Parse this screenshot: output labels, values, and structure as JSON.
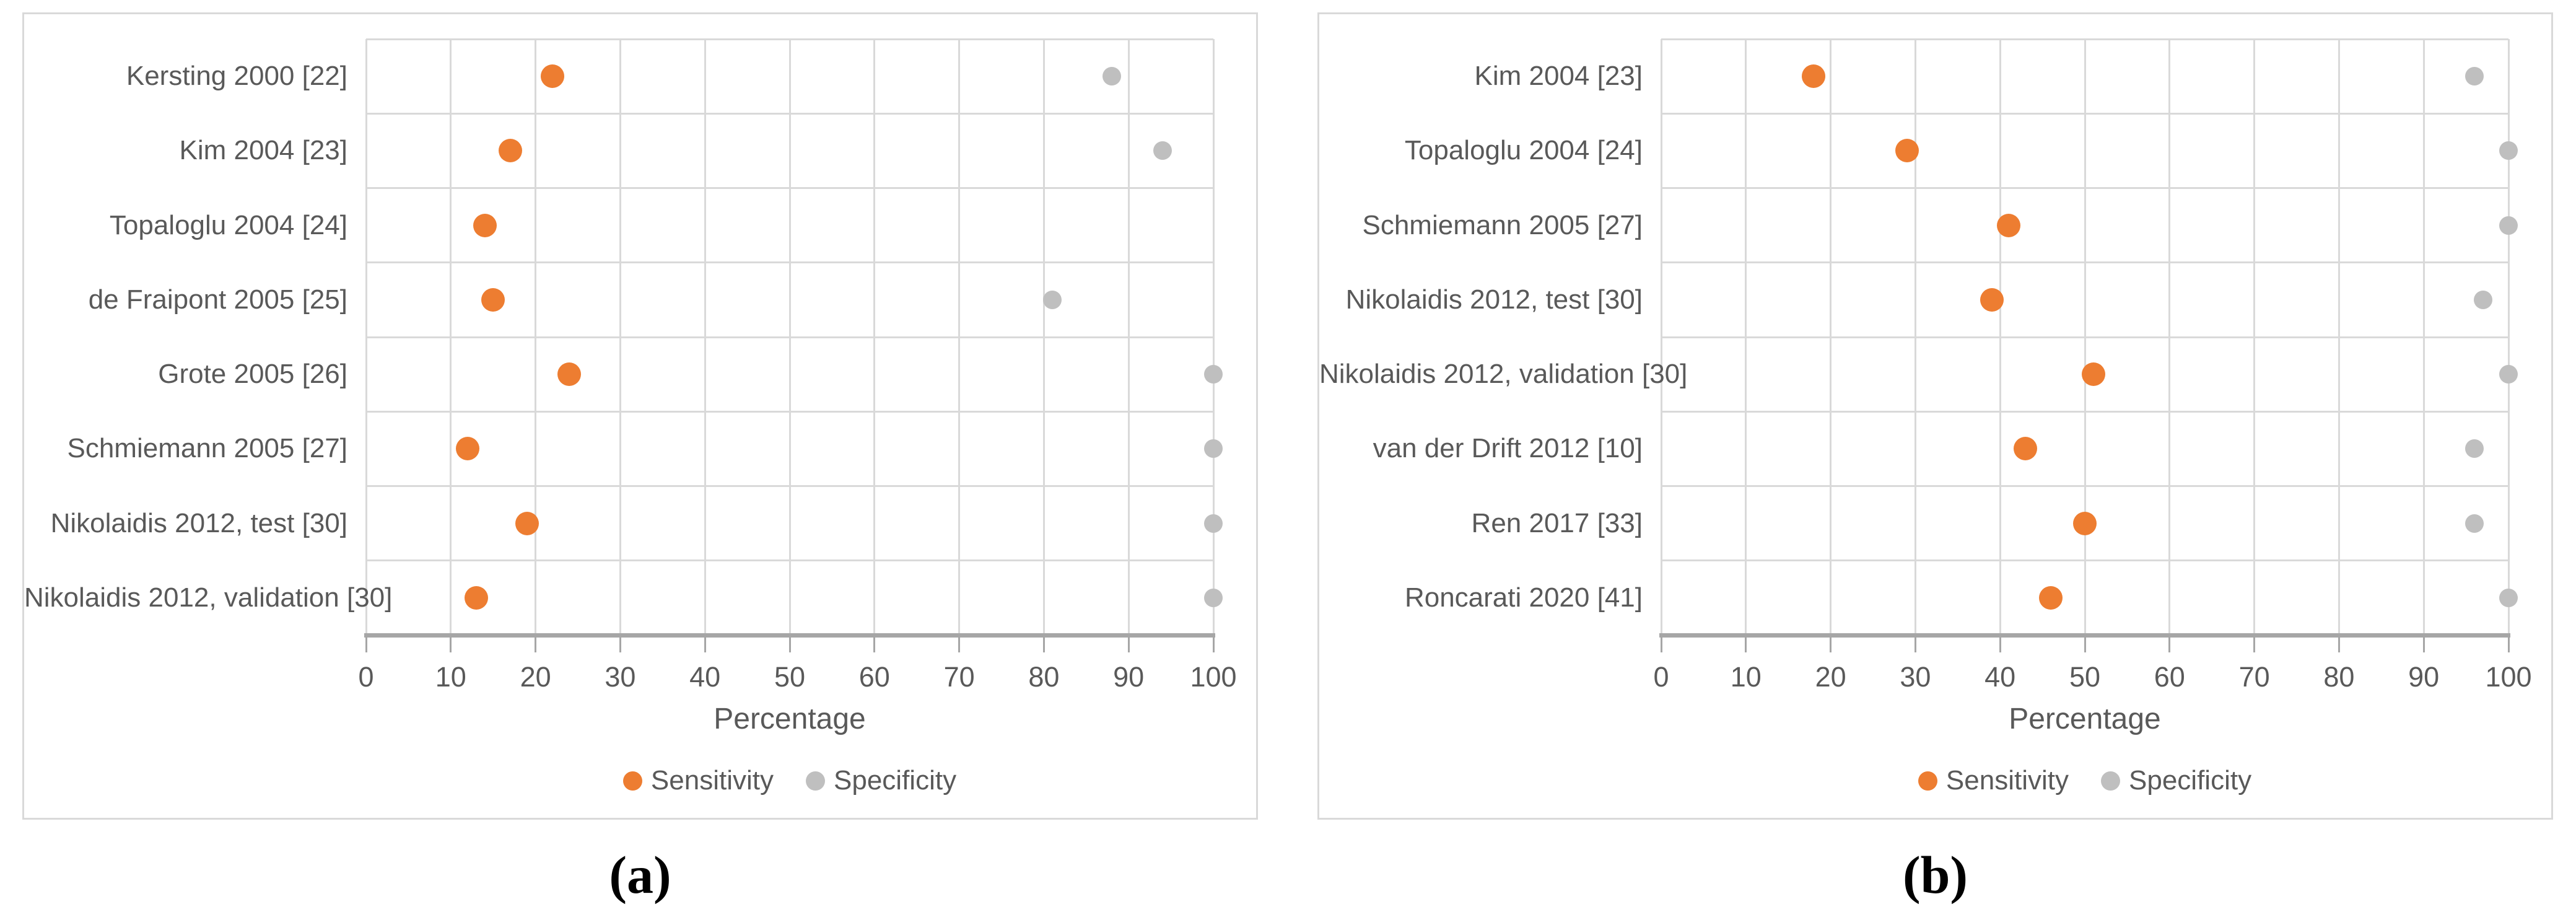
{
  "figure": {
    "background": "#ffffff",
    "panel_border_color": "#D9D9D9",
    "gridline_color": "#D9D9D9",
    "axis_line_color": "#A6A6A6",
    "text_color": "#595959",
    "caption_color": "#000000"
  },
  "chart_data": [
    {
      "type": "scatter",
      "title": "(a)",
      "xlabel": "Percentage",
      "xlim": [
        0,
        100
      ],
      "x_ticks": [
        0,
        10,
        20,
        30,
        40,
        50,
        60,
        70,
        80,
        90,
        100
      ],
      "grid": true,
      "legend_position": "bottom",
      "categories": [
        "Kersting 2000 [22]",
        "Kim 2004 [23]",
        "Topaloglu 2004 [24]",
        "de Fraipont 2005 [25]",
        "Grote 2005 [26]",
        "Schmiemann 2005 [27]",
        "Nikolaidis 2012, test [30]",
        "Nikolaidis 2012, validation [30]"
      ],
      "series": [
        {
          "name": "Sensitivity",
          "color": "#ED7D31",
          "values": [
            22,
            17,
            14,
            15,
            24,
            12,
            19,
            13
          ]
        },
        {
          "name": "Specificity",
          "color": "#BFBFBF",
          "values": [
            88,
            94,
            null,
            81,
            100,
            100,
            100,
            100
          ]
        }
      ]
    },
    {
      "type": "scatter",
      "title": "(b)",
      "xlabel": "Percentage",
      "xlim": [
        0,
        100
      ],
      "x_ticks": [
        0,
        10,
        20,
        30,
        40,
        50,
        60,
        70,
        80,
        90,
        100
      ],
      "grid": true,
      "legend_position": "bottom",
      "categories": [
        "Kim 2004 [23]",
        "Topaloglu 2004 [24]",
        "Schmiemann 2005 [27]",
        "Nikolaidis 2012, test [30]",
        "Nikolaidis 2012, validation [30]",
        "van der Drift 2012 [10]",
        "Ren 2017 [33]",
        "Roncarati 2020 [41]"
      ],
      "series": [
        {
          "name": "Sensitivity",
          "color": "#ED7D31",
          "values": [
            18,
            29,
            41,
            39,
            51,
            43,
            50,
            46
          ]
        },
        {
          "name": "Specificity",
          "color": "#BFBFBF",
          "values": [
            96,
            100,
            100,
            97,
            100,
            96,
            96,
            100
          ]
        }
      ]
    }
  ]
}
